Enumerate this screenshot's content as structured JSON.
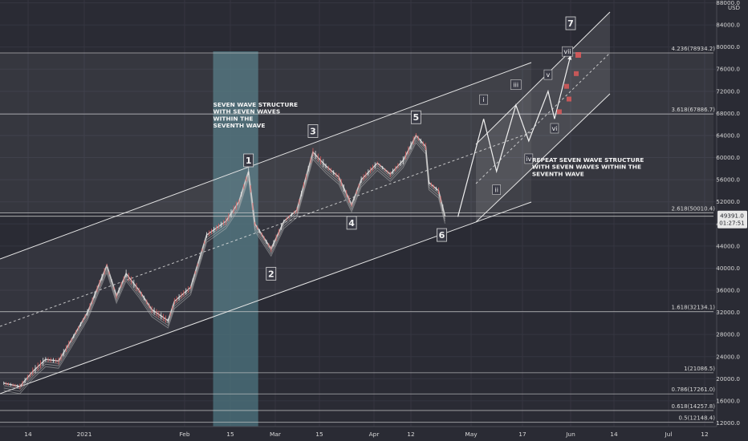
{
  "chart_data": {
    "type": "line",
    "title": "",
    "xlabel": "",
    "ylabel": "",
    "currency": "USD",
    "price_axis": {
      "ticks": [
        12000,
        16000,
        20000,
        24000,
        28000,
        32000,
        36000,
        40000,
        44000,
        48000,
        52000,
        56000,
        60000,
        64000,
        68000,
        72000,
        76000,
        80000,
        84000,
        88000
      ],
      "tick_labels": [
        "12000.0",
        "16000.0",
        "20000.0",
        "24000.0",
        "28000.0",
        "32000.0",
        "36000.0",
        "40000.0",
        "44000.0",
        "48000.0",
        "52000.0",
        "56000.0",
        "60000.0",
        "64000.0",
        "68000.0",
        "72000.0",
        "76000.0",
        "80000.0",
        "84000.0",
        "88000.0"
      ],
      "ylim": [
        11500,
        88500
      ]
    },
    "time_axis": {
      "tick_labels": [
        "14",
        "2021",
        "Feb",
        "15",
        "Mar",
        "15",
        "Apr",
        "12",
        "May",
        "17",
        "Jun",
        "14",
        "Jul",
        "12"
      ]
    },
    "current_price": {
      "label": "49391.0",
      "countdown": "01:27:51",
      "value": 49391.0
    },
    "fib_levels": [
      {
        "label": "4.236(78934.2)",
        "value": 78934.2
      },
      {
        "label": "3.618(67886.7)",
        "value": 67886.7
      },
      {
        "label": "2.618(50010.4)",
        "value": 50010.4
      },
      {
        "label": "1.618(32134.1)",
        "value": 32134.1
      },
      {
        "label": "1(21086.5)",
        "value": 21086.5
      },
      {
        "label": "0.786(17261.0)",
        "value": 17261.0
      },
      {
        "label": "0.618(14257.8)",
        "value": 14257.8
      },
      {
        "label": "0.5(12148.4)",
        "value": 12148.4
      }
    ],
    "series": [
      {
        "values": [
          {
            "t": "2020-12-07",
            "p": 19200
          },
          {
            "t": "2020-12-12",
            "p": 18600
          },
          {
            "t": "2020-12-16",
            "p": 21300
          },
          {
            "t": "2020-12-20",
            "p": 23500
          },
          {
            "t": "2020-12-24",
            "p": 23200
          },
          {
            "t": "2020-12-28",
            "p": 27000
          },
          {
            "t": "2021-01-02",
            "p": 32000
          },
          {
            "t": "2021-01-08",
            "p": 40500
          },
          {
            "t": "2021-01-11",
            "p": 35000
          },
          {
            "t": "2021-01-14",
            "p": 39000
          },
          {
            "t": "2021-01-18",
            "p": 36000
          },
          {
            "t": "2021-01-22",
            "p": 32500
          },
          {
            "t": "2021-01-27",
            "p": 30500
          },
          {
            "t": "2021-01-29",
            "p": 34000
          },
          {
            "t": "2021-02-03",
            "p": 36500
          },
          {
            "t": "2021-02-08",
            "p": 46000
          },
          {
            "t": "2021-02-14",
            "p": 48500
          },
          {
            "t": "2021-02-18",
            "p": 52000
          },
          {
            "t": "2021-02-21",
            "p": 57500
          },
          {
            "t": "2021-02-23",
            "p": 48000
          },
          {
            "t": "2021-02-28",
            "p": 43500
          },
          {
            "t": "2021-03-04",
            "p": 48500
          },
          {
            "t": "2021-03-08",
            "p": 50500
          },
          {
            "t": "2021-03-13",
            "p": 61000
          },
          {
            "t": "2021-03-17",
            "p": 58500
          },
          {
            "t": "2021-03-21",
            "p": 56500
          },
          {
            "t": "2021-03-25",
            "p": 51500
          },
          {
            "t": "2021-03-28",
            "p": 56000
          },
          {
            "t": "2021-04-02",
            "p": 59000
          },
          {
            "t": "2021-04-06",
            "p": 57000
          },
          {
            "t": "2021-04-10",
            "p": 59500
          },
          {
            "t": "2021-04-14",
            "p": 64000
          },
          {
            "t": "2021-04-17",
            "p": 62000
          },
          {
            "t": "2021-04-18",
            "p": 55500
          },
          {
            "t": "2021-04-21",
            "p": 54000
          },
          {
            "t": "2021-04-23",
            "p": 49391
          }
        ]
      }
    ],
    "projection": [
      {
        "t": "2021-04-27",
        "p": 49300
      },
      {
        "t": "2021-05-05",
        "p": 67000
      },
      {
        "t": "2021-05-09",
        "p": 57500
      },
      {
        "t": "2021-05-15",
        "p": 69500
      },
      {
        "t": "2021-05-19",
        "p": 63000
      },
      {
        "t": "2021-05-25",
        "p": 72000
      },
      {
        "t": "2021-05-27",
        "p": 67000
      },
      {
        "t": "2021-06-01",
        "p": 78500
      }
    ],
    "wave_labels": [
      {
        "label": "1",
        "t": "2021-02-21",
        "p": 59500
      },
      {
        "label": "2",
        "t": "2021-02-28",
        "p": 39000
      },
      {
        "label": "3",
        "t": "2021-03-13",
        "p": 64800
      },
      {
        "label": "4",
        "t": "2021-03-25",
        "p": 48200
      },
      {
        "label": "5",
        "t": "2021-04-14",
        "p": 67300
      },
      {
        "label": "6",
        "t": "2021-04-22",
        "p": 46000
      },
      {
        "label": "7",
        "t": "2021-06-01",
        "p": 84300
      }
    ],
    "sub_wave_labels": [
      {
        "label": "i",
        "t": "2021-05-05",
        "p": 70500
      },
      {
        "label": "ii",
        "t": "2021-05-09",
        "p": 54200
      },
      {
        "label": "iii",
        "t": "2021-05-15",
        "p": 73200
      },
      {
        "label": "iv",
        "t": "2021-05-19",
        "p": 59800
      },
      {
        "label": "v",
        "t": "2021-05-25",
        "p": 75000
      },
      {
        "label": "vi",
        "t": "2021-05-27",
        "p": 65300
      },
      {
        "label": "vii",
        "t": "2021-05-31",
        "p": 79200
      }
    ],
    "annotations": [
      {
        "lines": [
          "SEVEN WAVE STRUCTURE",
          "WITH SEVEN WAVES",
          "WITHIN THE",
          "SEVENTH WAVE"
        ],
        "t": "2021-02-10",
        "p": 69200
      },
      {
        "lines": [
          "REPEAT SEVEN WAVE STRUCTURE",
          "WITH SEVEN WAVES WITHIN THE",
          "SEVENTH WAVE"
        ],
        "t": "2021-05-20",
        "p": 59200
      }
    ],
    "grid": true,
    "colors": {
      "background": "#2a2b34",
      "price_line": "#c8c8c8",
      "down_candles": "#e35b5b",
      "channel": "#e6e6e6",
      "shaded_zone": "#4e7580",
      "fib_line": "#d0d0d0",
      "axis_text": "#d8d8d8",
      "current_price_tag": "#e8e8e8"
    }
  }
}
